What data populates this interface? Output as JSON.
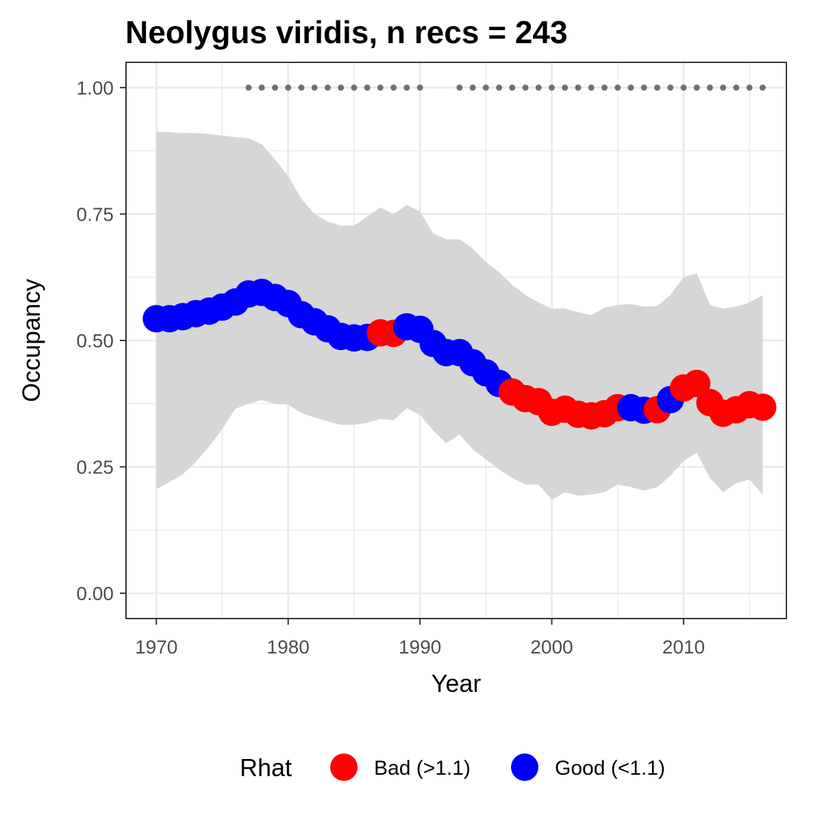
{
  "chart_data": {
    "type": "line",
    "title": "Neolygus viridis, n recs = 243",
    "xlabel": "Year",
    "ylabel": "Occupancy",
    "xlim": [
      1967.7,
      2017.8
    ],
    "ylim": [
      -0.05,
      1.05
    ],
    "x_ticks": [
      1970,
      1980,
      1990,
      2000,
      2010
    ],
    "x_tick_labels": [
      "1970",
      "1980",
      "1990",
      "2000",
      "2010"
    ],
    "y_ticks": [
      0,
      0.25,
      0.5,
      0.75,
      1.0
    ],
    "y_tick_labels": [
      "0.00",
      "0.25",
      "0.50",
      "0.75",
      "1.00"
    ],
    "grid": true,
    "legend_position": "bottom",
    "legend": {
      "title": "Rhat",
      "entries": [
        {
          "label": "Bad (>1.1)",
          "key": "bad",
          "color": "#ff0000"
        },
        {
          "label": "Good (<1.1)",
          "key": "good",
          "color": "#0000ff"
        }
      ]
    },
    "colors": {
      "bad": "#ff0000",
      "good": "#0000ff",
      "ribbon": "#d6d6d6",
      "record_dots": "#707070"
    },
    "x": [
      1970,
      1971,
      1972,
      1973,
      1974,
      1975,
      1976,
      1977,
      1978,
      1979,
      1980,
      1981,
      1982,
      1983,
      1984,
      1985,
      1986,
      1987,
      1988,
      1989,
      1990,
      1991,
      1992,
      1993,
      1994,
      1995,
      1996,
      1997,
      1998,
      1999,
      2000,
      2001,
      2002,
      2003,
      2004,
      2005,
      2006,
      2007,
      2008,
      2009,
      2010,
      2011,
      2012,
      2013,
      2014,
      2015,
      2016
    ],
    "occupancy": [
      0.543,
      0.543,
      0.547,
      0.553,
      0.558,
      0.566,
      0.576,
      0.592,
      0.595,
      0.585,
      0.573,
      0.551,
      0.537,
      0.523,
      0.508,
      0.505,
      0.506,
      0.515,
      0.514,
      0.527,
      0.522,
      0.494,
      0.476,
      0.476,
      0.456,
      0.436,
      0.415,
      0.398,
      0.385,
      0.379,
      0.358,
      0.364,
      0.354,
      0.351,
      0.355,
      0.367,
      0.367,
      0.362,
      0.363,
      0.383,
      0.406,
      0.415,
      0.377,
      0.356,
      0.363,
      0.373,
      0.368
    ],
    "rhat_status": [
      "good",
      "good",
      "good",
      "good",
      "good",
      "good",
      "good",
      "good",
      "good",
      "good",
      "good",
      "good",
      "good",
      "good",
      "good",
      "good",
      "good",
      "bad",
      "bad",
      "good",
      "good",
      "good",
      "good",
      "good",
      "good",
      "good",
      "good",
      "bad",
      "bad",
      "bad",
      "bad",
      "bad",
      "bad",
      "bad",
      "bad",
      "bad",
      "good",
      "good",
      "bad",
      "good",
      "bad",
      "bad",
      "bad",
      "bad",
      "bad",
      "bad",
      "bad"
    ],
    "lower_ci": [
      0.206,
      0.22,
      0.235,
      0.26,
      0.29,
      0.325,
      0.365,
      0.375,
      0.382,
      0.375,
      0.373,
      0.357,
      0.348,
      0.34,
      0.333,
      0.333,
      0.337,
      0.345,
      0.342,
      0.366,
      0.353,
      0.322,
      0.297,
      0.314,
      0.285,
      0.265,
      0.245,
      0.228,
      0.215,
      0.215,
      0.185,
      0.2,
      0.193,
      0.195,
      0.2,
      0.215,
      0.21,
      0.203,
      0.21,
      0.232,
      0.262,
      0.278,
      0.228,
      0.2,
      0.218,
      0.225,
      0.195
    ],
    "upper_ci": [
      0.913,
      0.912,
      0.91,
      0.91,
      0.908,
      0.905,
      0.902,
      0.9,
      0.888,
      0.858,
      0.825,
      0.78,
      0.75,
      0.735,
      0.727,
      0.727,
      0.745,
      0.763,
      0.75,
      0.768,
      0.755,
      0.712,
      0.7,
      0.7,
      0.682,
      0.655,
      0.635,
      0.61,
      0.59,
      0.575,
      0.563,
      0.563,
      0.556,
      0.55,
      0.565,
      0.57,
      0.572,
      0.567,
      0.568,
      0.59,
      0.625,
      0.633,
      0.57,
      0.563,
      0.567,
      0.575,
      0.59
    ],
    "record_years": [
      1977,
      1978,
      1979,
      1980,
      1981,
      1982,
      1983,
      1984,
      1985,
      1986,
      1987,
      1988,
      1989,
      1990,
      1993,
      1994,
      1995,
      1996,
      1997,
      1998,
      1999,
      2000,
      2001,
      2002,
      2003,
      2004,
      2005,
      2006,
      2007,
      2008,
      2009,
      2010,
      2011,
      2012,
      2013,
      2014,
      2015,
      2016
    ],
    "record_level": 1.0
  }
}
